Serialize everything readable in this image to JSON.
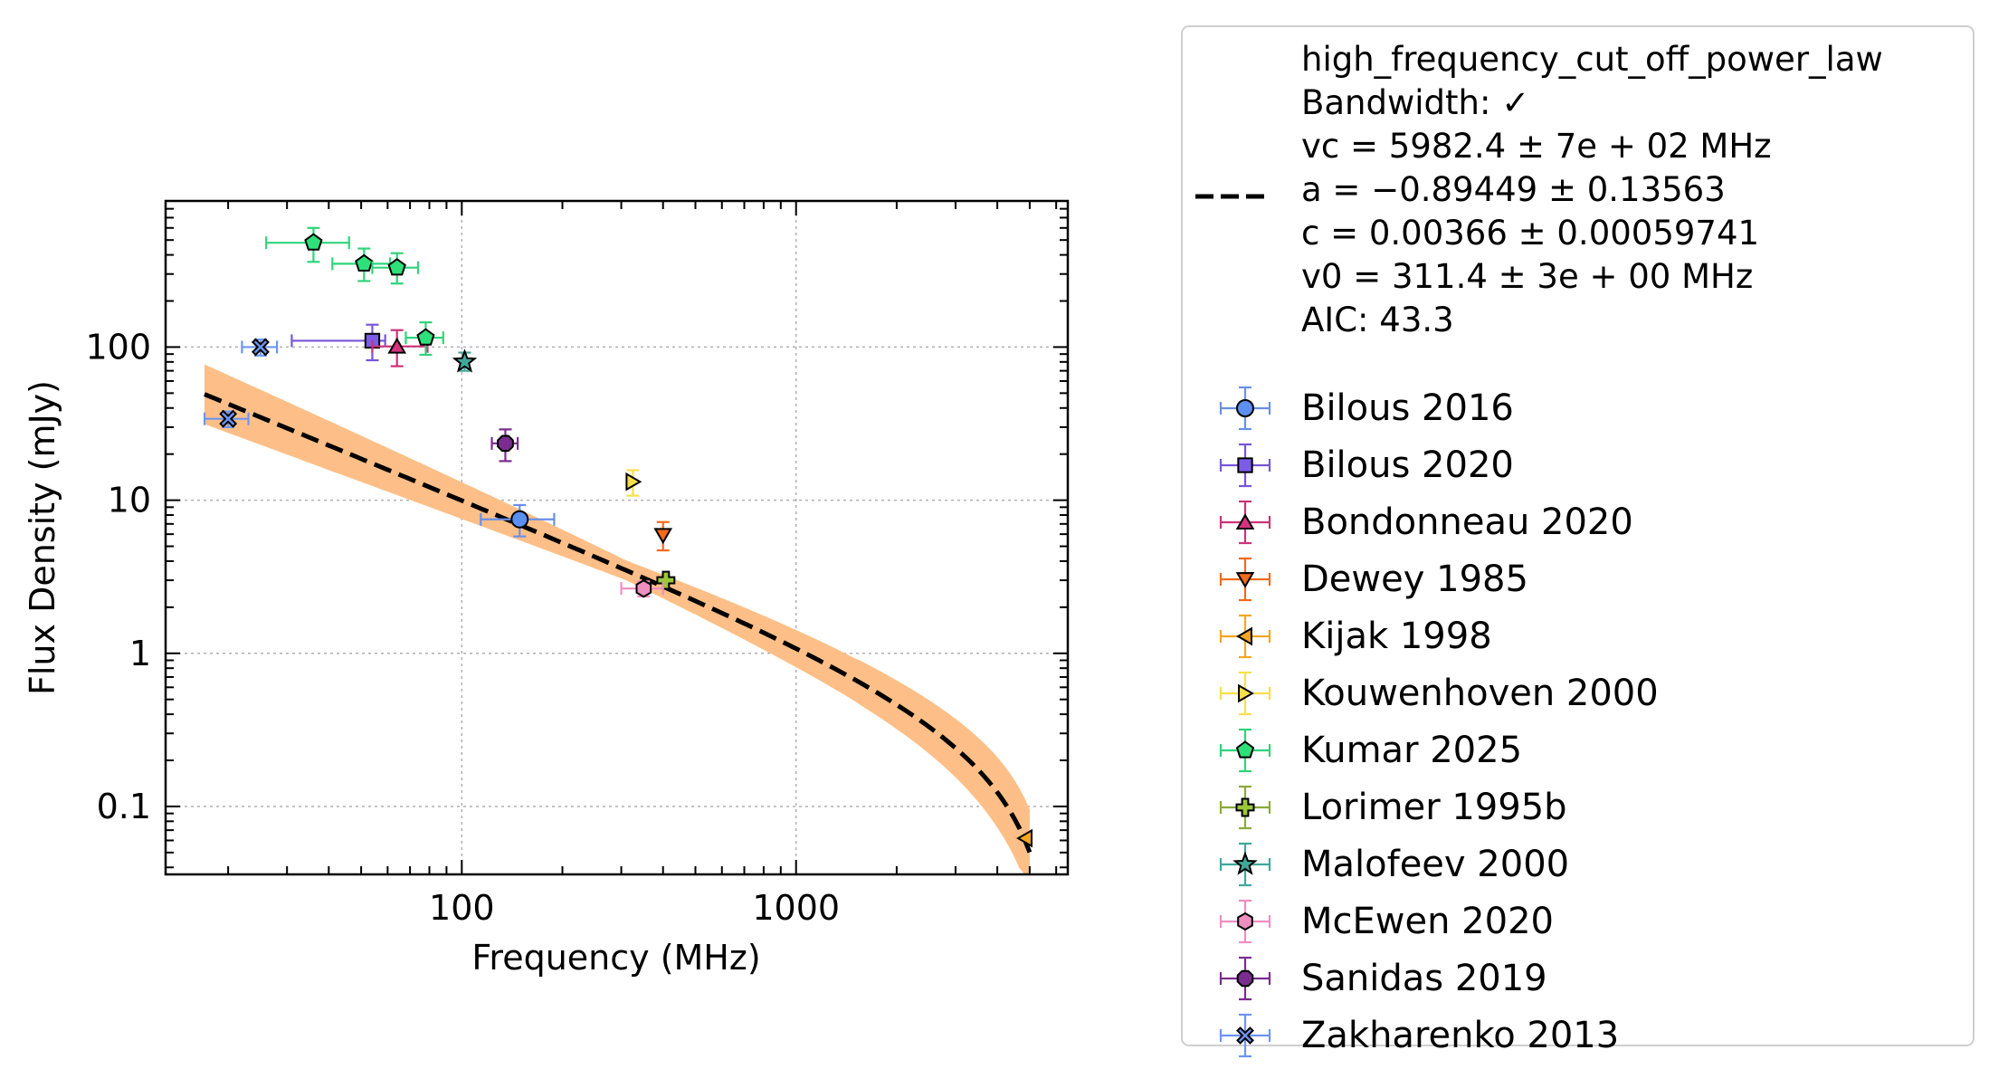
{
  "chart_data": {
    "type": "scatter",
    "xlabel": "Frequency (MHz)",
    "ylabel": "Flux Density (mJy)",
    "xscale": "log",
    "yscale": "log",
    "xlim": [
      13,
      6500
    ],
    "ylim": [
      0.036,
      900
    ],
    "xticks": [
      {
        "value": 100,
        "label": "100"
      },
      {
        "value": 1000,
        "label": "1000"
      }
    ],
    "yticks": [
      {
        "value": 0.1,
        "label": "0.1"
      },
      {
        "value": 1,
        "label": "1"
      },
      {
        "value": 10,
        "label": "10"
      },
      {
        "value": 100,
        "label": "100"
      }
    ],
    "grid": true,
    "legend_placement": "outside-right",
    "fit": {
      "model_name": "high_frequency_cut_off_power_law",
      "lines": [
        "high_frequency_cut_off_power_law",
        "Bandwidth: ✓",
        "vc = 5982.4 ± 7e + 02 MHz",
        "a = −0.89449 ± 0.13563",
        "c = 0.00366 ± 0.00059741",
        "v0 = 311.4 ± 3e + 00 MHz",
        "AIC: 43.3"
      ],
      "params": {
        "vc": 5982.4,
        "a": -0.89449,
        "c": 0.00366,
        "v0": 311.4
      },
      "x_range": [
        17,
        5000
      ],
      "band_color": "#fdbf87",
      "line_color": "#000000"
    },
    "series": [
      {
        "name": "Bilous 2016",
        "marker": "circle",
        "color": "#5b8ff0",
        "ecolor": "#6a90e6",
        "points": [
          {
            "x": 149,
            "y": 7.5,
            "xerr": [
              35,
              40
            ],
            "yerr": [
              1.7,
              1.8
            ]
          }
        ]
      },
      {
        "name": "Bilous 2020",
        "marker": "square",
        "color": "#7a5ce8",
        "ecolor": "#7656d8",
        "points": [
          {
            "x": 54,
            "y": 110,
            "xerr": [
              23,
              5
            ],
            "yerr": [
              28,
              30
            ]
          }
        ]
      },
      {
        "name": "Bondonneau 2020",
        "marker": "triangle-up",
        "color": "#d6337e",
        "ecolor": "#cc3377",
        "points": [
          {
            "x": 64,
            "y": 101,
            "xerr": [
              10,
              15
            ],
            "yerr": [
              26,
              28
            ]
          }
        ]
      },
      {
        "name": "Dewey 1985",
        "marker": "triangle-down",
        "color": "#f26a1b",
        "ecolor": "#f26a1b",
        "points": [
          {
            "x": 400,
            "y": 5.9,
            "xerr": [
              0,
              0
            ],
            "yerr": [
              1.2,
              1.3
            ]
          }
        ]
      },
      {
        "name": "Kijak 1998",
        "marker": "triangle-left",
        "color": "#f5a623",
        "ecolor": "#f5a623",
        "points": [
          {
            "x": 4850,
            "y": 0.062,
            "xerr": [
              0,
              0
            ],
            "yerr": [
              0,
              0
            ]
          }
        ]
      },
      {
        "name": "Kouwenhoven 2000",
        "marker": "triangle-right",
        "color": "#f7e04b",
        "ecolor": "#f7e04b",
        "points": [
          {
            "x": 325,
            "y": 13.2,
            "xerr": [
              0,
              0
            ],
            "yerr": [
              2.5,
              2.5
            ]
          }
        ]
      },
      {
        "name": "Kumar 2025",
        "marker": "pentagon",
        "color": "#2ee07a",
        "ecolor": "#2ed47a",
        "points": [
          {
            "x": 36,
            "y": 480,
            "xerr": [
              10,
              10
            ],
            "yerr": [
              120,
              120
            ]
          },
          {
            "x": 51,
            "y": 350,
            "xerr": [
              10,
              10
            ],
            "yerr": [
              80,
              90
            ]
          },
          {
            "x": 64,
            "y": 330,
            "xerr": [
              10,
              10
            ],
            "yerr": [
              70,
              80
            ]
          },
          {
            "x": 78,
            "y": 115,
            "xerr": [
              10,
              10
            ],
            "yerr": [
              26,
              30
            ]
          }
        ]
      },
      {
        "name": "Lorimer 1995b",
        "marker": "plus",
        "color": "#9cc63b",
        "ecolor": "#8aaa3a",
        "points": [
          {
            "x": 408,
            "y": 3.0,
            "xerr": [
              0,
              0
            ],
            "yerr": [
              0,
              0
            ]
          }
        ]
      },
      {
        "name": "Malofeev 2000",
        "marker": "star",
        "color": "#3fa89a",
        "ecolor": "#3fa89a",
        "points": [
          {
            "x": 102,
            "y": 80,
            "xerr": [
              0,
              0
            ],
            "yerr": [
              10,
              12
            ]
          }
        ]
      },
      {
        "name": "McEwen 2020",
        "marker": "hexagon",
        "color": "#ee8fc0",
        "ecolor": "#ee8fc0",
        "points": [
          {
            "x": 350,
            "y": 2.65,
            "xerr": [
              50,
              50
            ],
            "yerr": [
              0.3,
              0.3
            ]
          }
        ]
      },
      {
        "name": "Sanidas 2019",
        "marker": "octagon",
        "color": "#7b2c8f",
        "ecolor": "#7b2c8f",
        "points": [
          {
            "x": 135,
            "y": 23.5,
            "xerr": [
              12,
              12
            ],
            "yerr": [
              5.5,
              5.5
            ]
          }
        ]
      },
      {
        "name": "Zakharenko 2013",
        "marker": "x-filled",
        "color": "#6d95f2",
        "ecolor": "#6d95f2",
        "points": [
          {
            "x": 20,
            "y": 34,
            "xerr": [
              3,
              3
            ],
            "yerr": [
              4,
              4
            ]
          },
          {
            "x": 25,
            "y": 100,
            "xerr": [
              3,
              3
            ],
            "yerr": [
              12,
              12
            ]
          }
        ]
      }
    ]
  }
}
